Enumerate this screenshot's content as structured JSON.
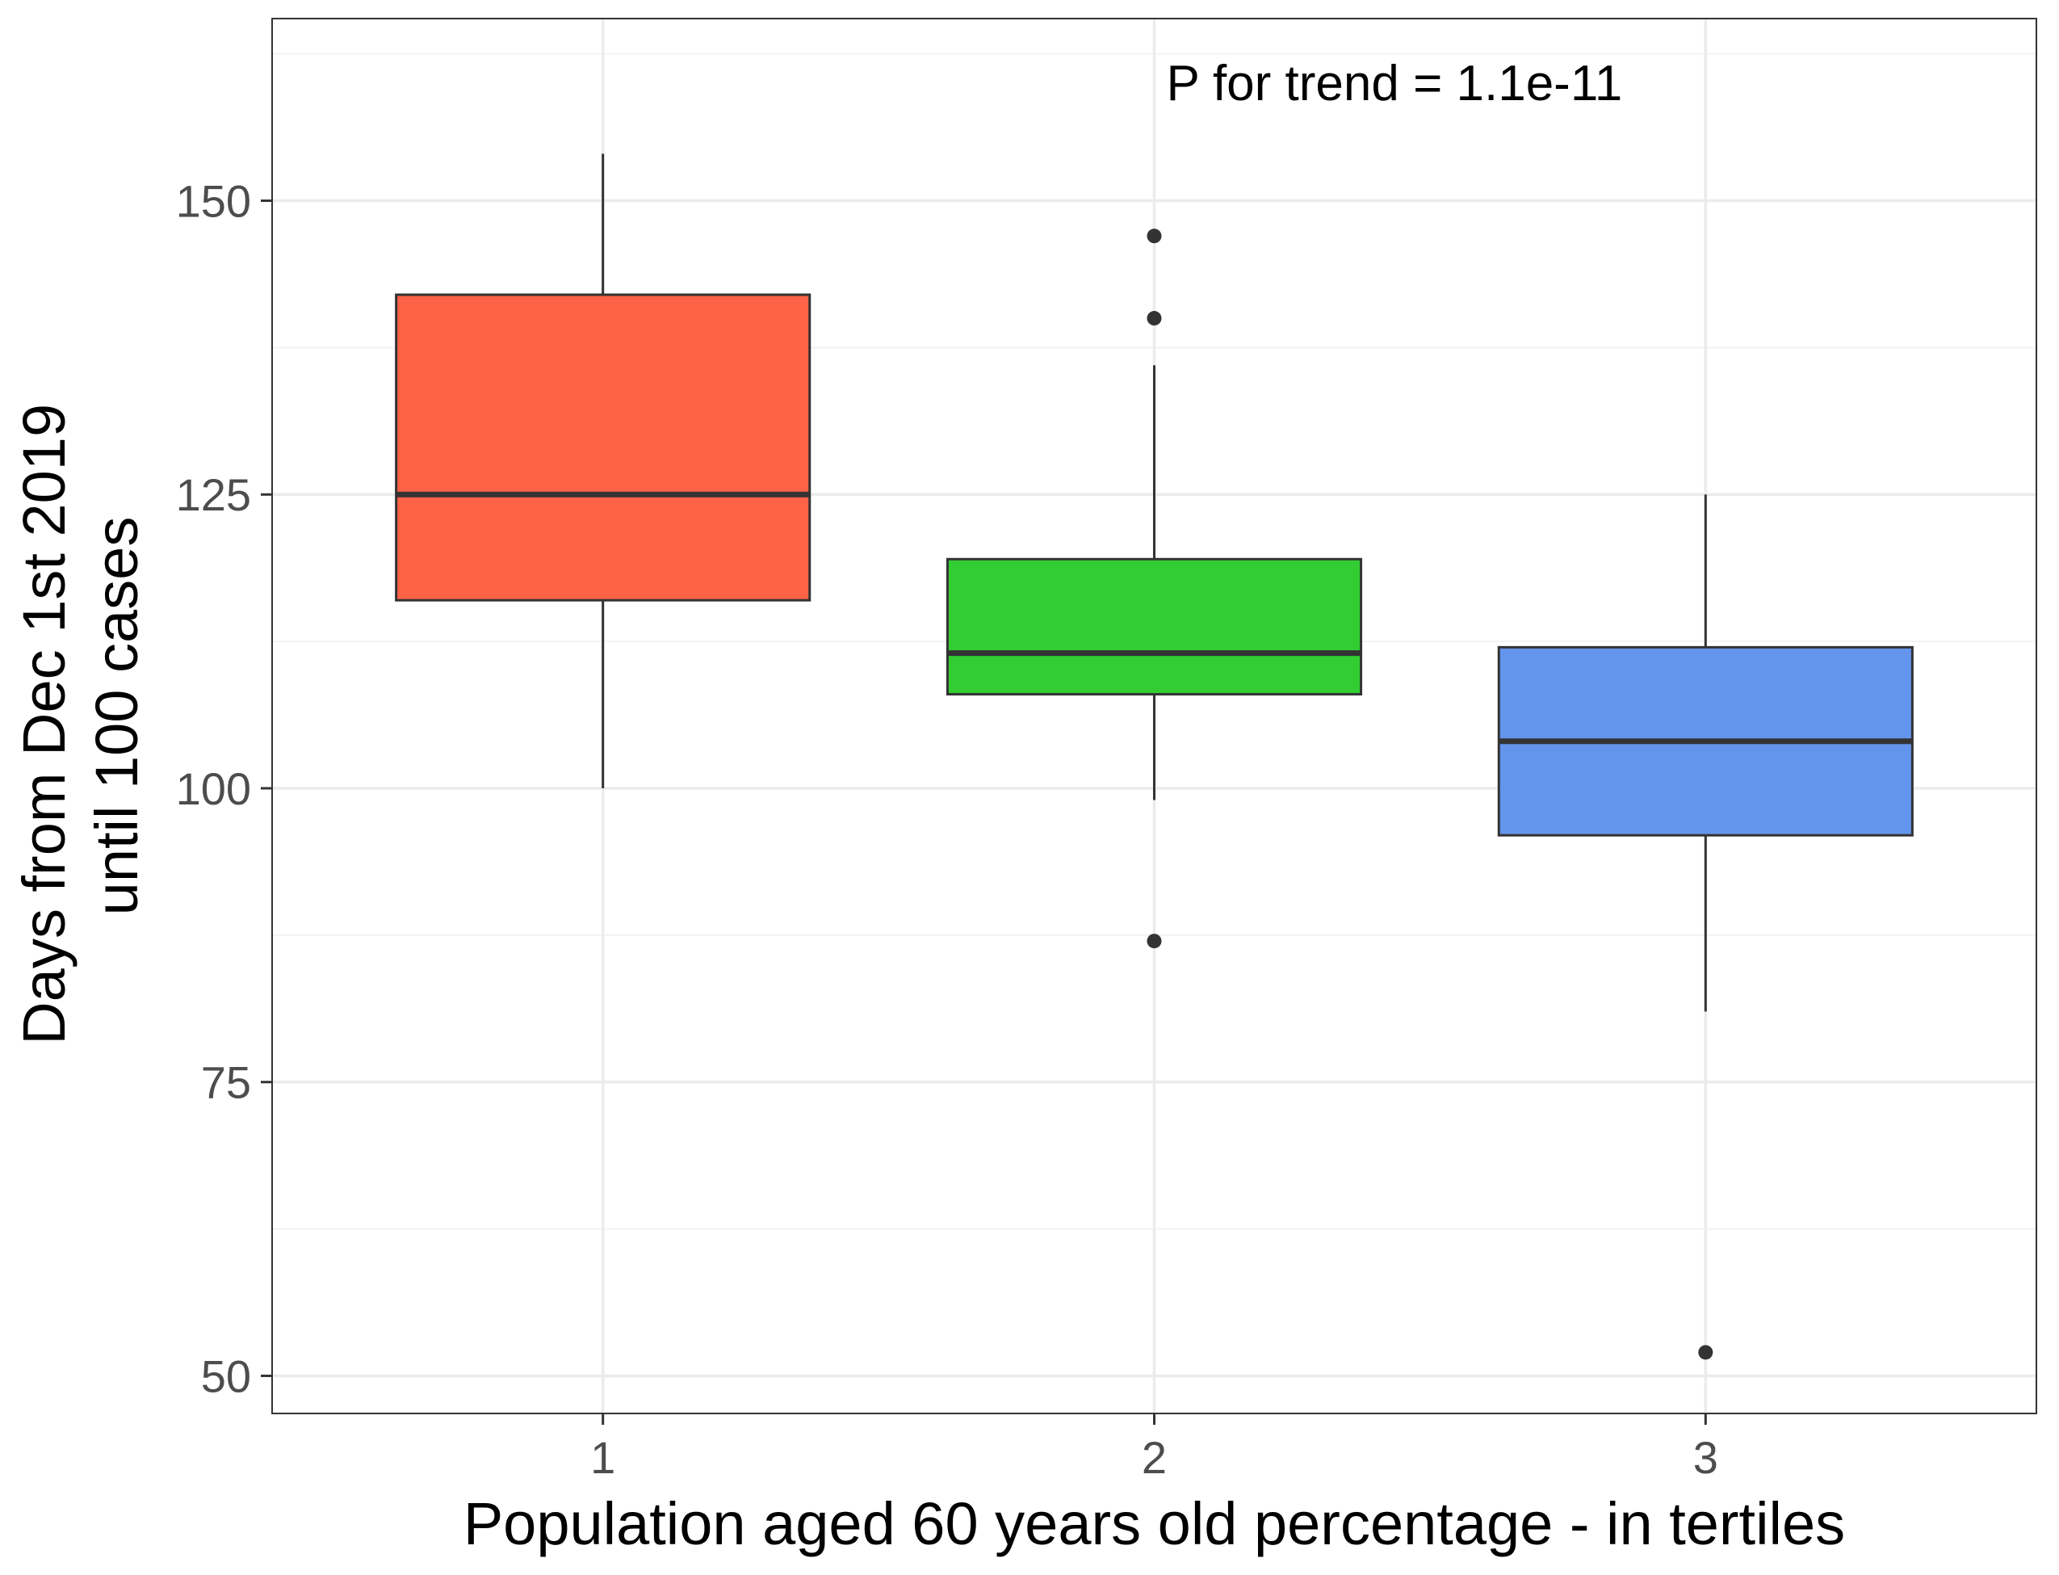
{
  "chart_data": {
    "type": "boxplot",
    "xlabel": "Population aged 60 years old percentage - in tertiles",
    "ylabel_lines": [
      "Days from Dec 1st 2019",
      "until 100 cases"
    ],
    "categories": [
      "1",
      "2",
      "3"
    ],
    "y_ticks": [
      50,
      75,
      100,
      125,
      150
    ],
    "y_tick_labels": [
      "50",
      "75",
      "100",
      "125",
      "150"
    ],
    "ylim": [
      46.8,
      165.5
    ],
    "grid": true,
    "legend": "none",
    "annotation": "P for trend = 1.1e-11",
    "boxes": [
      {
        "category": "1",
        "whisker_low": 100,
        "q1": 116,
        "median": 125,
        "q3": 142,
        "whisker_high": 154,
        "outliers": [],
        "color": "#FF6347"
      },
      {
        "category": "2",
        "whisker_low": 99,
        "q1": 108,
        "median": 111.5,
        "q3": 119.5,
        "whisker_high": 136,
        "outliers": [
          147,
          140,
          87
        ],
        "color": "#32CD32"
      },
      {
        "category": "3",
        "whisker_low": 81,
        "q1": 96,
        "median": 104,
        "q3": 112,
        "whisker_high": 125,
        "outliers": [
          52
        ],
        "color": "#6495ED"
      }
    ]
  }
}
